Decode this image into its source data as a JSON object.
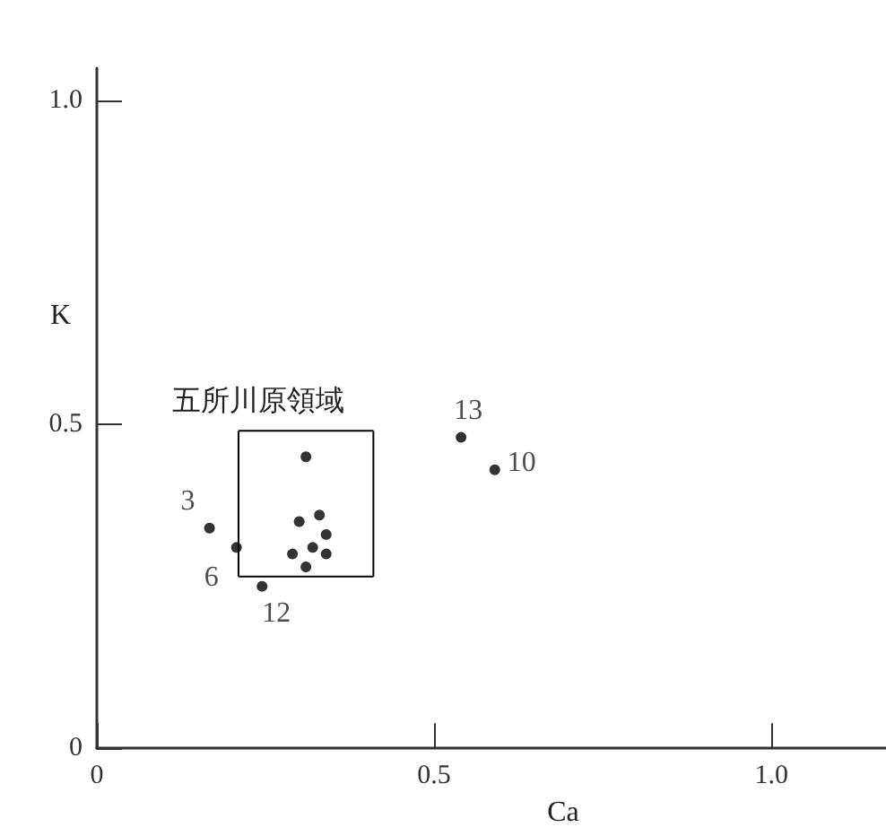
{
  "chart_data": {
    "type": "scatter",
    "xlabel": "Ca",
    "ylabel": "K",
    "xlim": [
      0,
      1.17
    ],
    "ylim": [
      0,
      1.05
    ],
    "xticks": [
      0,
      0.5,
      {
        "value": 1,
        "label": "1.0"
      }
    ],
    "yticks": [
      0,
      0.5,
      {
        "value": 1,
        "label": "1.0"
      }
    ],
    "grid": false,
    "marker": "circle",
    "annotations": [
      "五所川原領域",
      {
        "text": "3",
        "x": 0.167,
        "y": 0.34
      },
      {
        "text": "6",
        "x": 0.207,
        "y": 0.31
      },
      {
        "text": "12",
        "x": 0.245,
        "y": 0.25
      },
      {
        "text": "13",
        "x": 0.54,
        "y": 0.48
      },
      {
        "text": "10",
        "x": 0.59,
        "y": 0.43
      }
    ],
    "series": [
      {
        "color": "#000000",
        "x": [
          0.167,
          0.207,
          0.245,
          0.54,
          0.59,
          0.31,
          0.3,
          0.33,
          0.34,
          0.32,
          0.29,
          0.34,
          0.31
        ],
        "values": [
          0.34,
          0.31,
          0.25,
          0.48,
          0.43,
          0.45,
          0.35,
          0.36,
          0.33,
          0.31,
          0.3,
          0.3,
          0.28
        ]
      },
      {
        "type": "line",
        "color": "#000000",
        "marker": "none",
        "line_style": "solid",
        "x": [
          0.21,
          0.41
        ],
        "values": [
          0.49,
          0.49
        ]
      },
      {
        "type": "line",
        "color": "#000000",
        "marker": "none",
        "line_style": "solid",
        "x": [
          0.41,
          0.41
        ],
        "values": [
          0.49,
          0.265
        ]
      },
      {
        "type": "line",
        "color": "#000000",
        "marker": "none",
        "line_style": "solid",
        "x": [
          0.21,
          0.41
        ],
        "values": [
          0.265,
          0.265
        ]
      },
      {
        "type": "line",
        "color": "#000000",
        "marker": "none",
        "line_style": "solid",
        "x": [
          0.21,
          0.21
        ],
        "values": [
          0.265,
          0.49
        ]
      }
    ]
  }
}
